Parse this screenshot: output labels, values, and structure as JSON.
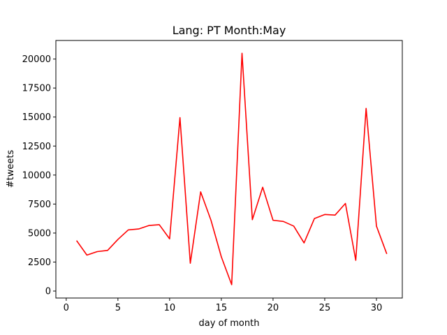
{
  "chart_data": {
    "type": "line",
    "title": "Lang: PT Month:May",
    "xlabel": "day of month",
    "ylabel": "#tweets",
    "xlim": [
      -1,
      32.5
    ],
    "ylim": [
      -600,
      21600
    ],
    "xticks": [
      0,
      5,
      10,
      15,
      20,
      25,
      30
    ],
    "yticks": [
      0,
      2500,
      5000,
      7500,
      10000,
      12500,
      15000,
      17500,
      20000
    ],
    "grid": false,
    "legend": "none",
    "series": [
      {
        "color": "#ff0000",
        "x": [
          1,
          2,
          3,
          4,
          5,
          6,
          7,
          8,
          9,
          10,
          11,
          12,
          13,
          14,
          15,
          16,
          17,
          18,
          19,
          20,
          21,
          22,
          23,
          24,
          25,
          26,
          27,
          28,
          29,
          30,
          31
        ],
        "values": [
          4350,
          3100,
          3400,
          3500,
          4450,
          5270,
          5350,
          5650,
          5720,
          4500,
          14950,
          2400,
          8550,
          6100,
          2950,
          550,
          20500,
          6150,
          8950,
          6100,
          6000,
          5600,
          4150,
          6250,
          6600,
          6550,
          7550,
          2650,
          15750,
          5600,
          3200
        ]
      }
    ]
  }
}
